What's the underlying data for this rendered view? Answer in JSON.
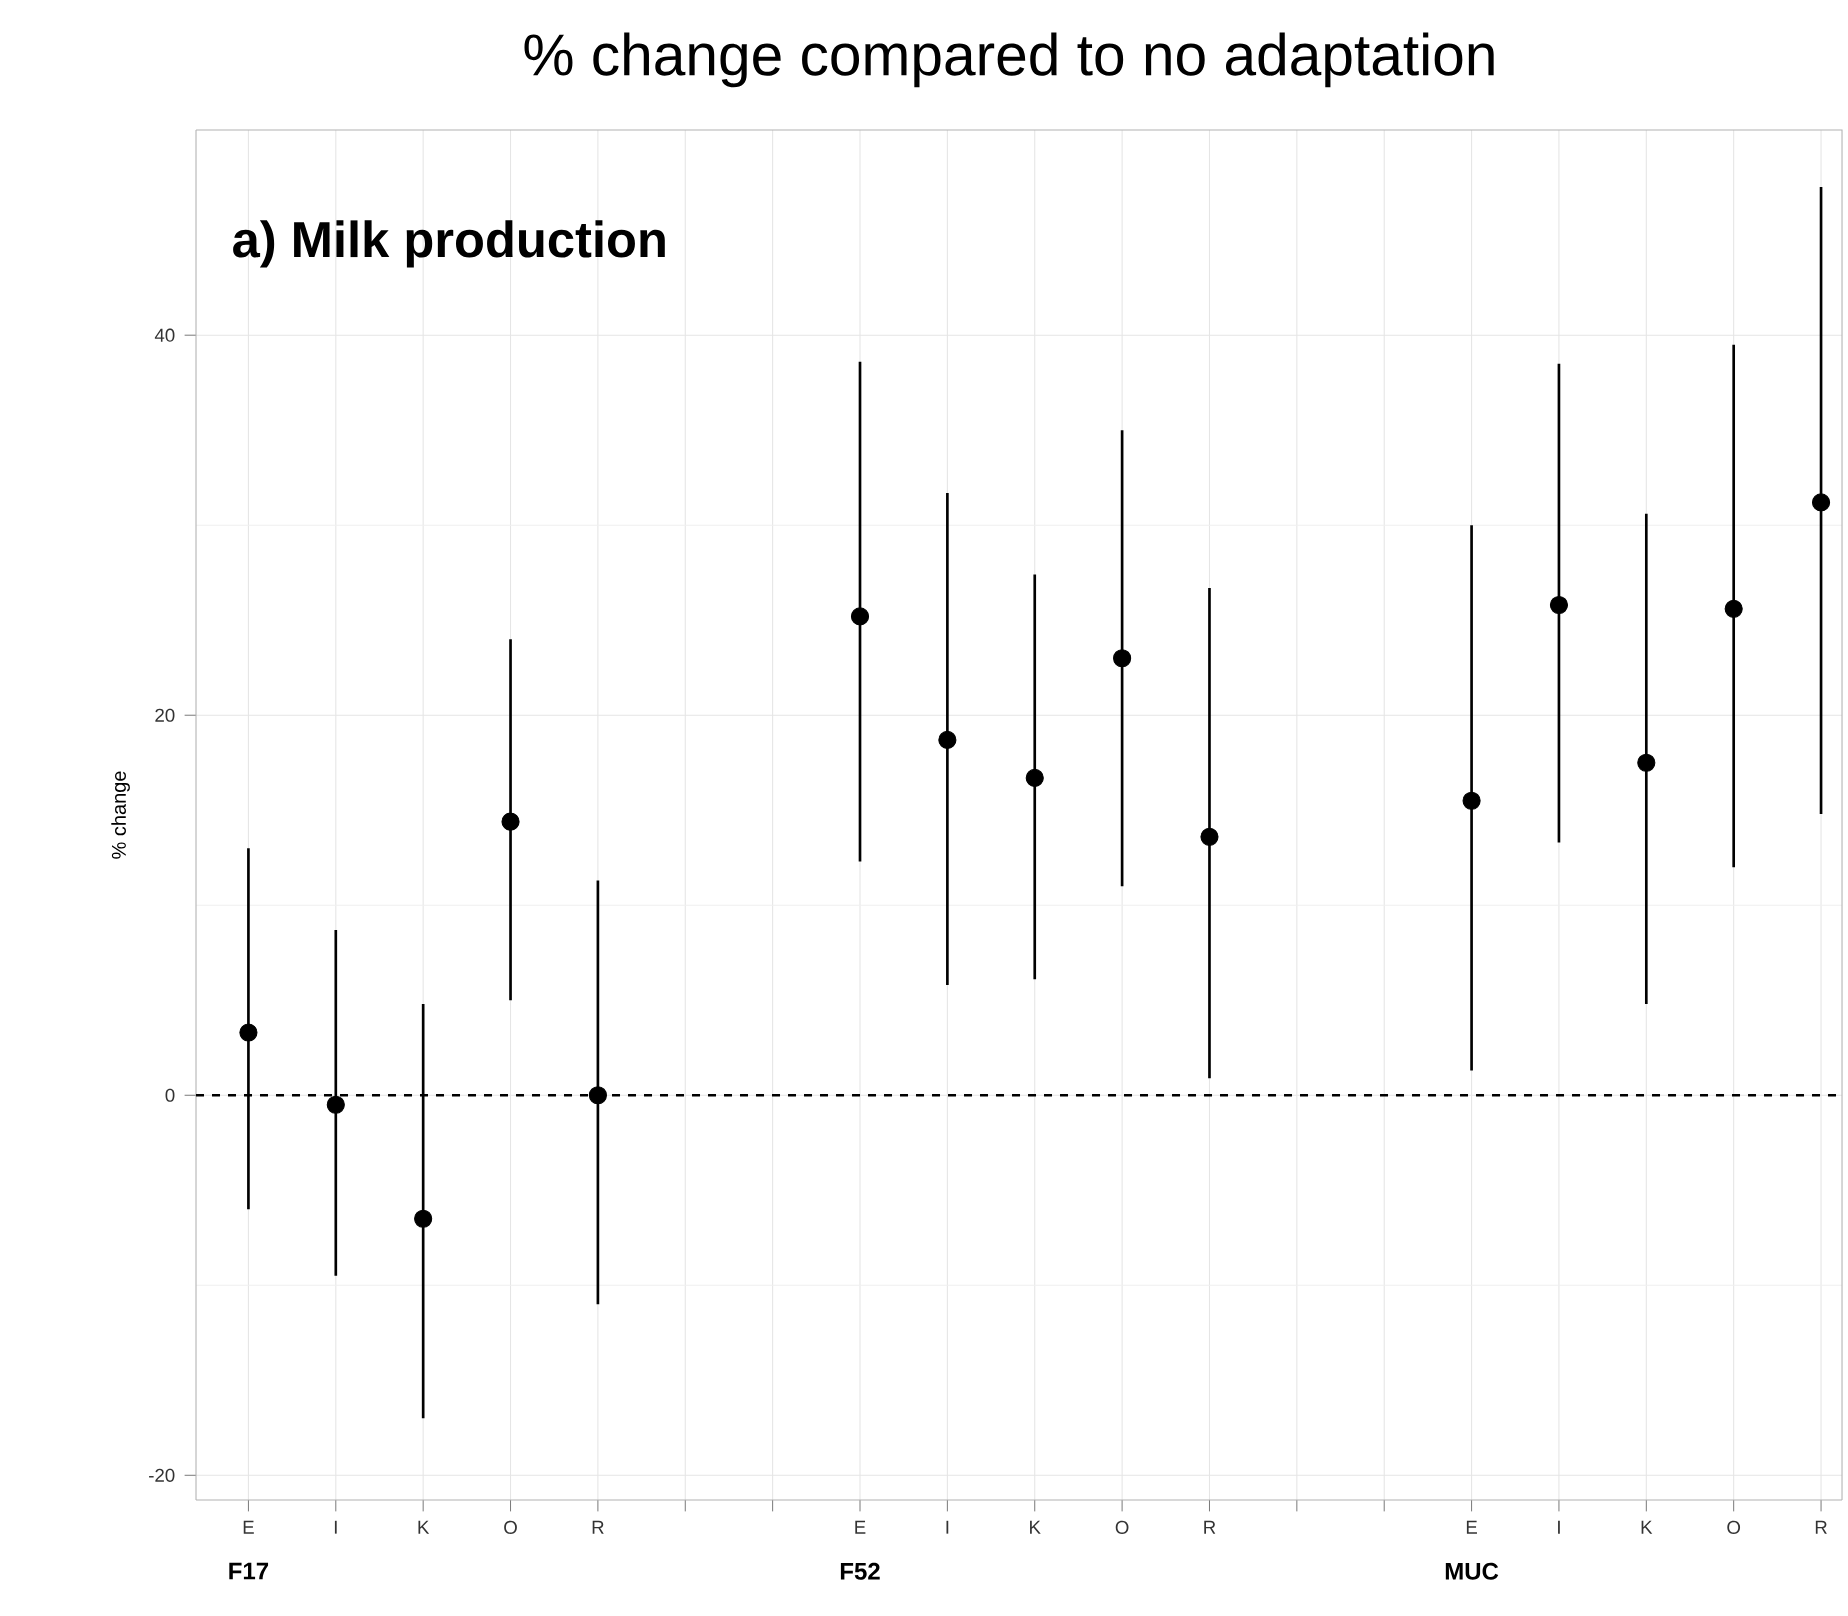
{
  "chart_data": {
    "type": "scatter",
    "title": "% change compared to no adaptation",
    "ylabel": "% change",
    "categories": [
      "E",
      "I",
      "K",
      "O",
      "R",
      null,
      null,
      "E",
      "I",
      "K",
      "O",
      "R",
      null,
      null,
      "E",
      "I",
      "K",
      "O",
      "R"
    ],
    "series": [
      {
        "color": "#000000",
        "values": [
          3.3,
          -0.5,
          -6.5,
          14.4,
          0,
          null,
          null,
          25.2,
          18.7,
          16.7,
          23,
          13.6,
          null,
          null,
          15.5,
          25.8,
          17.5,
          25.6,
          31.2
        ],
        "errors": [
          [
            -6,
            13
          ],
          [
            -9.5,
            8.7
          ],
          [
            -17,
            4.8
          ],
          [
            5,
            24
          ],
          [
            -11,
            11.3
          ],
          null,
          null,
          [
            12.3,
            38.6
          ],
          [
            5.8,
            31.7
          ],
          [
            6.1,
            27.4
          ],
          [
            11,
            35
          ],
          [
            0.9,
            26.7
          ],
          null,
          null,
          [
            1.3,
            30
          ],
          [
            13.3,
            38.5
          ],
          [
            4.8,
            30.6
          ],
          [
            12,
            39.5
          ],
          [
            14.8,
            47.8
          ]
        ]
      }
    ],
    "ylim": [
      -21.3,
      50.8
    ],
    "yticks": [
      -20,
      0,
      20,
      40
    ],
    "grid": true,
    "marker": "circle",
    "ref_lines": [
      {
        "axis": "y",
        "value": 0,
        "color": "#000000",
        "line_style": "dashed"
      }
    ],
    "annotations": [
      "a) Milk production",
      "F17",
      "F52",
      "MUC"
    ]
  }
}
